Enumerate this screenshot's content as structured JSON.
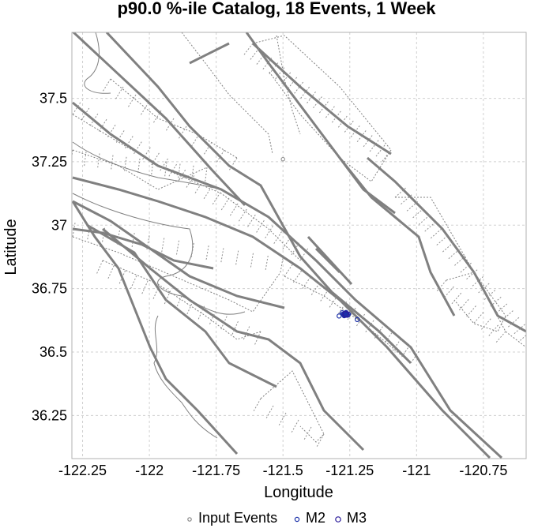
{
  "chart_data": {
    "type": "scatter",
    "title": "p90.0 %-ile Catalog, 18 Events, 1 Week",
    "xlabel": "Longitude",
    "ylabel": "Latitude",
    "xlim": [
      -122.29,
      -120.59
    ],
    "ylim": [
      36.08,
      37.76
    ],
    "xticks": [
      -122.25,
      -122,
      -121.75,
      -121.5,
      -121.25,
      -121,
      -120.75
    ],
    "xtick_labels": [
      "-122.25",
      "-122",
      "-121.75",
      "-121.5",
      "-121.25",
      "-121",
      "-120.75"
    ],
    "yticks": [
      36.25,
      36.5,
      36.75,
      37,
      37.25,
      37.5
    ],
    "ytick_labels": [
      "36.25",
      "36.5",
      "36.75",
      "37",
      "37.25",
      "37.5"
    ],
    "grid": true,
    "legend_position": "bottom",
    "colors": {
      "input_events": "#888888",
      "m2": "#1a2fa8",
      "m3": "#2a1a9a",
      "fault": "#808080",
      "grid": "#d0d0d0"
    },
    "series": [
      {
        "name": "Input Events",
        "marker": "circle-open",
        "points": [
          [
            -121.5,
            37.26
          ],
          [
            -121.245,
            36.66
          ]
        ]
      },
      {
        "name": "M2",
        "marker": "circle-open",
        "points": [
          [
            -121.27,
            36.652
          ],
          [
            -121.265,
            36.645
          ],
          [
            -121.262,
            36.648
          ],
          [
            -121.275,
            36.65
          ],
          [
            -121.268,
            36.646
          ],
          [
            -121.26,
            36.651
          ],
          [
            -121.278,
            36.655
          ],
          [
            -121.266,
            36.653
          ],
          [
            -121.271,
            36.643
          ],
          [
            -121.258,
            36.645
          ],
          [
            -121.264,
            36.656
          ],
          [
            -121.255,
            36.649
          ],
          [
            -121.29,
            36.642
          ],
          [
            -121.222,
            36.628
          ],
          [
            -121.273,
            36.647
          ]
        ]
      },
      {
        "name": "M3",
        "marker": "circle-open",
        "points": [
          [
            -121.265,
            36.649
          ]
        ]
      }
    ]
  },
  "legend": {
    "items": [
      "Input Events",
      "M2",
      "M3"
    ]
  }
}
